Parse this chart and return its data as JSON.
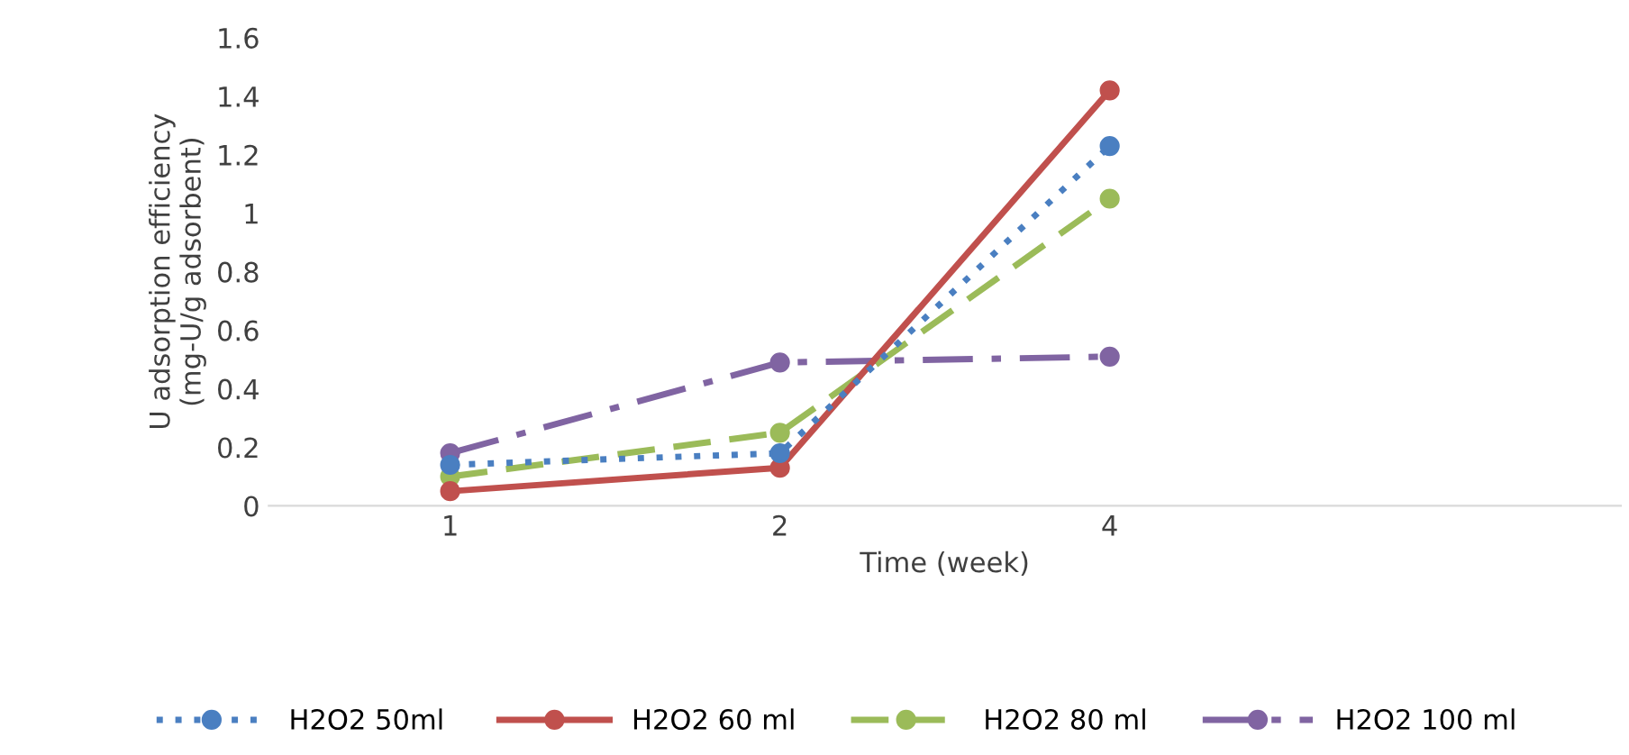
{
  "chart_data": {
    "type": "line",
    "xlabel": "Time (week)",
    "ylabel": "U adsorption efficiency\n(mg-U/g adsorbent)",
    "categories": [
      "1",
      "2",
      "4",
      null
    ],
    "series": [
      {
        "name": "H2O2 50ml",
        "color": "#4a7fc1",
        "line_style": "dotted",
        "values": [
          0.14,
          0.18,
          1.23,
          null
        ]
      },
      {
        "name": "H2O2 60 ml",
        "color": "#c0504d",
        "line_style": "solid",
        "values": [
          0.05,
          0.13,
          1.42,
          null
        ]
      },
      {
        "name": "H2O2 80 ml",
        "color": "#9bbb59",
        "line_style": "dashed",
        "values": [
          0.1,
          0.25,
          1.05,
          null
        ]
      },
      {
        "name": "H2O2 100 ml",
        "color": "#8064a2",
        "line_style": "dashdot",
        "values": [
          0.18,
          0.49,
          0.51,
          null
        ]
      }
    ],
    "marker": "circle",
    "ylim": [
      0,
      1.6
    ],
    "yticks": [
      0,
      0.2,
      0.4,
      0.6,
      0.8,
      1,
      1.2,
      1.4,
      1.6
    ],
    "grid": false,
    "legend": "bottom"
  }
}
